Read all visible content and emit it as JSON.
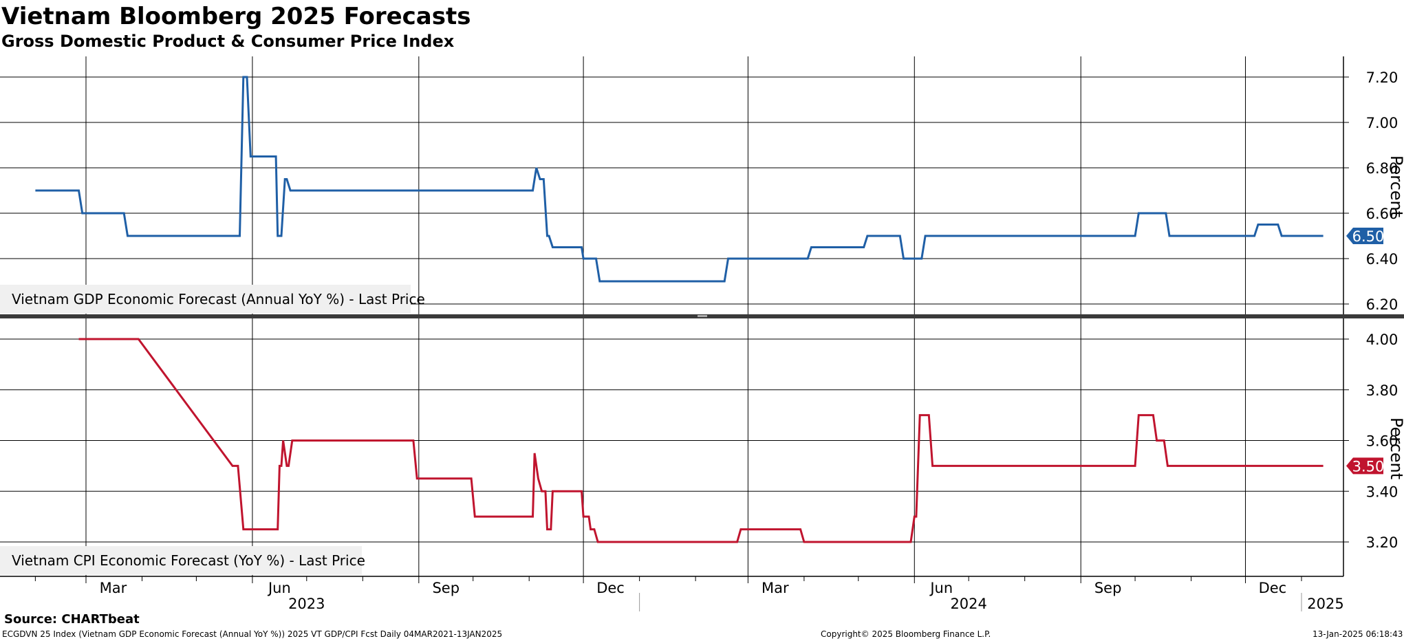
{
  "title": "Vietnam Bloomberg 2025 Forecasts",
  "subtitle": "Gross Domestic Product & Consumer Price Index",
  "footer": {
    "source": "Source: CHARTbeat",
    "description": "ECGDVN 25 Index (Vietnam GDP Economic Forecast (Annual YoY %)) 2025 VT GDP/CPI Fcst  Daily 04MAR2021-13JAN2025",
    "copyright": "Copyright© 2025 Bloomberg Finance L.P.",
    "timestamp": "13-Jan-2025 06:18:43"
  },
  "x_axis": {
    "months": [
      "Mar",
      "Jun",
      "Sep",
      "Dec",
      "Mar",
      "Jun",
      "Sep",
      "Dec"
    ],
    "years": [
      "2023",
      "2024",
      "2025"
    ]
  },
  "chart_data": [
    {
      "type": "line",
      "name": "gdp-panel",
      "ylabel": "Percent",
      "ylim": [
        6.15,
        7.28
      ],
      "yticks": [
        "7.20",
        "7.00",
        "6.80",
        "6.60",
        "6.40",
        "6.20"
      ],
      "color": "#1f5fa6",
      "last_value_label": "6.50",
      "legend": "Vietnam GDP Economic Forecast (Annual YoY %) - Last Price",
      "series": [
        {
          "name": "Vietnam GDP Economic Forecast (Annual YoY %) - Last Price",
          "points": [
            [
              "2023-02-01",
              6.7
            ],
            [
              "2023-02-25",
              6.7
            ],
            [
              "2023-02-27",
              6.6
            ],
            [
              "2023-03-22",
              6.6
            ],
            [
              "2023-03-24",
              6.5
            ],
            [
              "2023-05-25",
              6.5
            ],
            [
              "2023-05-27",
              7.2
            ],
            [
              "2023-05-29",
              7.2
            ],
            [
              "2023-05-31",
              6.85
            ],
            [
              "2023-06-14",
              6.85
            ],
            [
              "2023-06-15",
              6.5
            ],
            [
              "2023-06-17",
              6.5
            ],
            [
              "2023-06-19",
              6.75
            ],
            [
              "2023-06-20",
              6.75
            ],
            [
              "2023-06-22",
              6.7
            ],
            [
              "2023-11-03",
              6.7
            ],
            [
              "2023-11-05",
              6.8
            ],
            [
              "2023-11-07",
              6.75
            ],
            [
              "2023-11-09",
              6.75
            ],
            [
              "2023-11-11",
              6.5
            ],
            [
              "2023-11-12",
              6.5
            ],
            [
              "2023-11-14",
              6.45
            ],
            [
              "2023-11-30",
              6.45
            ],
            [
              "2023-12-01",
              6.4
            ],
            [
              "2023-12-08",
              6.4
            ],
            [
              "2023-12-10",
              6.3
            ],
            [
              "2024-02-17",
              6.3
            ],
            [
              "2024-02-19",
              6.4
            ],
            [
              "2024-04-03",
              6.4
            ],
            [
              "2024-04-05",
              6.45
            ],
            [
              "2024-05-04",
              6.45
            ],
            [
              "2024-05-06",
              6.5
            ],
            [
              "2024-05-24",
              6.5
            ],
            [
              "2024-05-26",
              6.4
            ],
            [
              "2024-06-05",
              6.4
            ],
            [
              "2024-06-07",
              6.5
            ],
            [
              "2024-10-01",
              6.5
            ],
            [
              "2024-10-03",
              6.6
            ],
            [
              "2024-10-18",
              6.6
            ],
            [
              "2024-10-20",
              6.5
            ],
            [
              "2024-12-06",
              6.5
            ],
            [
              "2024-12-08",
              6.55
            ],
            [
              "2024-12-19",
              6.55
            ],
            [
              "2024-12-21",
              6.5
            ],
            [
              "2025-01-13",
              6.5
            ]
          ]
        }
      ]
    },
    {
      "type": "line",
      "name": "cpi-panel",
      "ylabel": "Percent",
      "ylim": [
        3.13,
        4.05
      ],
      "yticks": [
        "4.00",
        "3.80",
        "3.60",
        "3.40",
        "3.20"
      ],
      "color": "#c0142e",
      "last_value_label": "3.50",
      "legend": "Vietnam CPI Economic Forecast (YoY %) - Last Price",
      "series": [
        {
          "name": "Vietnam CPI Economic Forecast (YoY %) - Last Price",
          "points": [
            [
              "2023-02-25",
              4.0
            ],
            [
              "2023-03-30",
              4.0
            ],
            [
              "2023-05-21",
              3.5
            ],
            [
              "2023-05-24",
              3.5
            ],
            [
              "2023-05-27",
              3.25
            ],
            [
              "2023-06-15",
              3.25
            ],
            [
              "2023-06-16",
              3.5
            ],
            [
              "2023-06-17",
              3.5
            ],
            [
              "2023-06-18",
              3.6
            ],
            [
              "2023-06-20",
              3.5
            ],
            [
              "2023-06-21",
              3.5
            ],
            [
              "2023-06-23",
              3.6
            ],
            [
              "2023-08-29",
              3.6
            ],
            [
              "2023-08-31",
              3.45
            ],
            [
              "2023-09-30",
              3.45
            ],
            [
              "2023-10-02",
              3.3
            ],
            [
              "2023-11-03",
              3.3
            ],
            [
              "2023-11-04",
              3.55
            ],
            [
              "2023-11-06",
              3.45
            ],
            [
              "2023-11-08",
              3.4
            ],
            [
              "2023-11-10",
              3.4
            ],
            [
              "2023-11-11",
              3.25
            ],
            [
              "2023-11-13",
              3.25
            ],
            [
              "2023-11-14",
              3.4
            ],
            [
              "2023-11-30",
              3.4
            ],
            [
              "2023-12-01",
              3.3
            ],
            [
              "2023-12-04",
              3.3
            ],
            [
              "2023-12-05",
              3.25
            ],
            [
              "2023-12-07",
              3.25
            ],
            [
              "2023-12-09",
              3.2
            ],
            [
              "2024-02-24",
              3.2
            ],
            [
              "2024-02-26",
              3.25
            ],
            [
              "2024-03-30",
              3.25
            ],
            [
              "2024-04-01",
              3.2
            ],
            [
              "2024-05-30",
              3.2
            ],
            [
              "2024-06-01",
              3.3
            ],
            [
              "2024-06-02",
              3.3
            ],
            [
              "2024-06-04",
              3.7
            ],
            [
              "2024-06-09",
              3.7
            ],
            [
              "2024-06-11",
              3.5
            ],
            [
              "2024-10-01",
              3.5
            ],
            [
              "2024-10-03",
              3.7
            ],
            [
              "2024-10-11",
              3.7
            ],
            [
              "2024-10-13",
              3.6
            ],
            [
              "2024-10-17",
              3.6
            ],
            [
              "2024-10-19",
              3.5
            ],
            [
              "2025-01-13",
              3.5
            ]
          ]
        }
      ]
    }
  ]
}
